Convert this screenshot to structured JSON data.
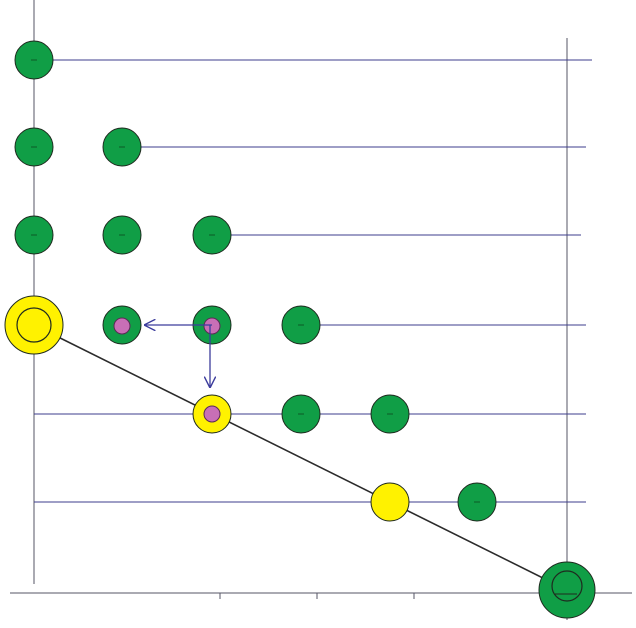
{
  "diagram": {
    "colors": {
      "background": "#ffffff",
      "axis_line": "#555566",
      "row_line": "#3c3c8c",
      "node_green": "#109e46",
      "node_yellow": "#fff200",
      "node_stroke": "#1f2a1f",
      "marker_pink": "#c86fb6",
      "arrow": "#3c3c9c",
      "path_line": "#2b2b2b"
    },
    "rows": [
      {
        "nodes": [
          "green"
        ]
      },
      {
        "nodes": [
          "green",
          "green"
        ]
      },
      {
        "nodes": [
          "green",
          "green",
          "green"
        ]
      },
      {
        "nodes": [
          "yellow-ring",
          "green-pink",
          "green-pink",
          "green"
        ]
      },
      {
        "nodes": [
          null,
          null,
          "yellow-pink",
          "green",
          "green"
        ]
      },
      {
        "nodes": [
          null,
          null,
          null,
          null,
          "yellow",
          "green"
        ]
      }
    ],
    "end_node": "green-ring",
    "arrows": [
      "left",
      "down"
    ],
    "path": "diagonal"
  }
}
